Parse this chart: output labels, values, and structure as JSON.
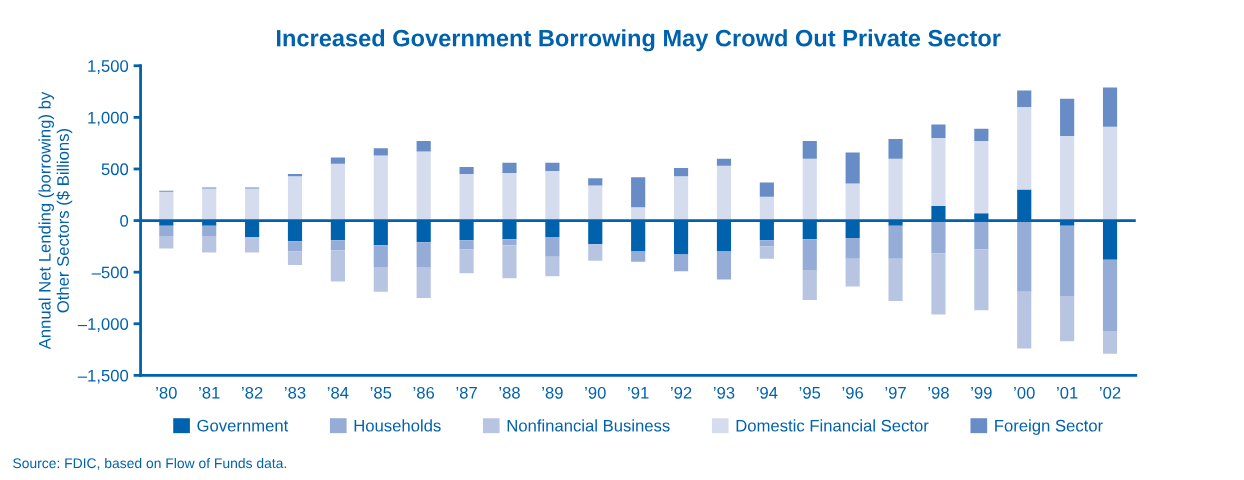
{
  "chart_data": {
    "type": "bar",
    "stacked": true,
    "title": "Increased Government Borrowing May Crowd Out Private Sector",
    "ylabel": "Annual Net Lending (borrowing) by\nOther Sectors ($ Billions)",
    "categories": [
      "’80",
      "’81",
      "’82",
      "’83",
      "’84",
      "’85",
      "’86",
      "’87",
      "’88",
      "’89",
      "’90",
      "’91",
      "’92",
      "’93",
      "’94",
      "’95",
      "’96",
      "’97",
      "’98",
      "’99",
      "’00",
      "’01",
      "’02"
    ],
    "series": [
      {
        "name": "Government",
        "color": "#0061ad",
        "values": [
          -50,
          -50,
          -160,
          -200,
          -190,
          -240,
          -210,
          -190,
          -180,
          -160,
          -230,
          -300,
          -330,
          -300,
          -190,
          -180,
          -170,
          -50,
          140,
          70,
          300,
          -50,
          -380
        ]
      },
      {
        "name": "Households",
        "color": "#94acd6",
        "values": [
          -100,
          -100,
          0,
          -100,
          -100,
          -210,
          -240,
          -90,
          -60,
          -190,
          0,
          -100,
          -160,
          -270,
          -60,
          -300,
          -200,
          -320,
          -320,
          -280,
          -690,
          -680,
          -690
        ]
      },
      {
        "name": "Nonfinancial Business",
        "color": "#b8c5e2",
        "values": [
          -120,
          -160,
          -150,
          -130,
          -300,
          -240,
          -300,
          -230,
          -320,
          -190,
          -160,
          0,
          0,
          0,
          -120,
          -290,
          -270,
          -410,
          -590,
          -590,
          -550,
          -440,
          -220
        ]
      },
      {
        "name": "Domestic Financial Sector",
        "color": "#d4dcee",
        "values": [
          280,
          310,
          310,
          430,
          550,
          630,
          670,
          450,
          460,
          480,
          340,
          130,
          430,
          530,
          230,
          600,
          360,
          600,
          660,
          700,
          800,
          820,
          910
        ]
      },
      {
        "name": "Foreign Sector",
        "color": "#678cc6",
        "values": [
          10,
          10,
          10,
          20,
          60,
          70,
          100,
          70,
          100,
          80,
          70,
          290,
          80,
          70,
          140,
          170,
          300,
          190,
          130,
          120,
          160,
          360,
          380
        ]
      }
    ],
    "ref_lines": [
      {
        "axis": "y",
        "value": 0,
        "color": "#0061ad"
      }
    ],
    "ylim": [
      -1500,
      1500
    ],
    "yticks": [
      {
        "value": -1500,
        "label": "–1,500"
      },
      {
        "value": -1000,
        "label": "–1,000"
      },
      {
        "value": -500,
        "label": "–500"
      },
      0,
      {
        "value": 500,
        "label": "500"
      },
      {
        "value": 1000,
        "label": "1,000"
      },
      {
        "value": 1500,
        "label": "1,500"
      }
    ],
    "grid": false,
    "legend": "bottom",
    "annotations": [
      "Source: FDIC, based on Flow of Funds data."
    ]
  }
}
